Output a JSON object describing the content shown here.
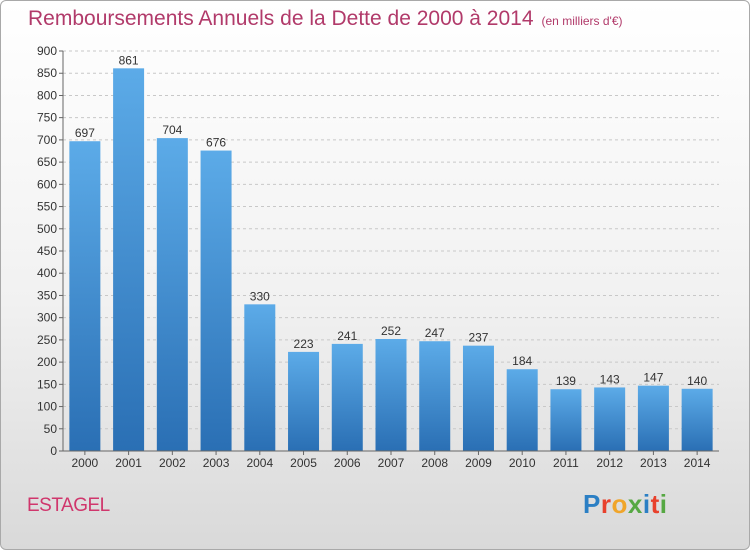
{
  "title": "Remboursements Annuels de la Dette de 2000 à 2014",
  "subtitle": "(en milliers d'€)",
  "town": "ESTAGEL",
  "logo": {
    "letters": [
      "P",
      "r",
      "o",
      "x",
      "i",
      "t",
      "i"
    ],
    "colors": [
      "#2b7fc4",
      "#e8412c",
      "#f0a52a",
      "#56a843",
      "#2b7fc4",
      "#e8412c",
      "#56a843"
    ]
  },
  "colors": {
    "bar": "#3e8fd6",
    "bar_light": "#5cabe8",
    "bar_dark": "#2a6fb4",
    "title": "#b13a6a",
    "town": "#d0366c",
    "grid": "#c8c8c8"
  },
  "chart_data": {
    "type": "bar",
    "title": "Remboursements Annuels de la Dette de 2000 à 2014",
    "subtitle": "(en milliers d'€)",
    "categories": [
      "2000",
      "2001",
      "2002",
      "2003",
      "2004",
      "2005",
      "2006",
      "2007",
      "2008",
      "2009",
      "2010",
      "2011",
      "2012",
      "2013",
      "2014"
    ],
    "values": [
      697,
      861,
      704,
      676,
      330,
      223,
      241,
      252,
      247,
      237,
      184,
      139,
      143,
      147,
      140
    ],
    "ylim": [
      0,
      900
    ],
    "yticks": [
      0,
      50,
      100,
      150,
      200,
      250,
      300,
      350,
      400,
      450,
      500,
      550,
      600,
      650,
      700,
      750,
      800,
      850,
      900
    ],
    "grid": true,
    "xlabel": "",
    "ylabel": ""
  }
}
